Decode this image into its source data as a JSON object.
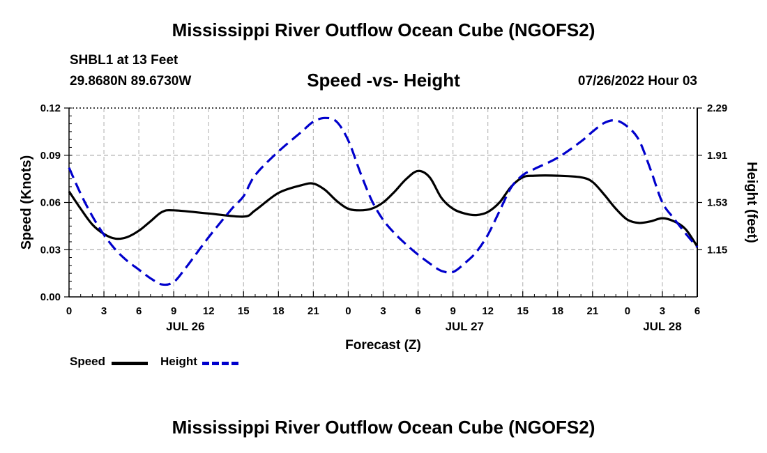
{
  "header": {
    "title": "Mississippi River Outflow Ocean Cube (NGOFS2)",
    "station": "SHBL1 at 13 Feet",
    "coordinates": "29.8680N  89.6730W",
    "subtitle": "Speed -vs- Height",
    "datetime": "07/26/2022 Hour 03"
  },
  "footer": {
    "title": "Mississippi River Outflow Ocean Cube (NGOFS2)"
  },
  "legend": {
    "speed_label": "Speed",
    "height_label": "Height",
    "speed_color": "#000000",
    "height_color": "#0000cc"
  },
  "chart_data": {
    "type": "line",
    "title": "Speed -vs- Height",
    "xlabel": "Forecast (Z)",
    "ylabel": "Speed (Knots)",
    "y2label": "Height (feet)",
    "x": [
      0,
      3,
      6,
      9,
      12,
      15,
      18,
      21,
      24,
      27,
      30,
      33,
      36,
      39,
      42,
      45,
      48,
      51,
      54
    ],
    "xticklabels": [
      "0",
      "3",
      "6",
      "9",
      "12",
      "15",
      "18",
      "21",
      "0",
      "3",
      "6",
      "9",
      "12",
      "15",
      "18",
      "21",
      "0",
      "3",
      "6"
    ],
    "date_labels": [
      {
        "hour": 10,
        "label": "JUL 26"
      },
      {
        "hour": 34,
        "label": "JUL 27"
      },
      {
        "hour": 51,
        "label": "JUL 28"
      }
    ],
    "ylim": [
      0,
      0.12
    ],
    "yticks": [
      0.0,
      0.03,
      0.06,
      0.09,
      0.12
    ],
    "yticklabels": [
      "0.00",
      "0.03",
      "0.06",
      "0.09",
      "0.12"
    ],
    "y2lim": [
      0.77,
      2.29
    ],
    "y2ticks": [
      1.15,
      1.53,
      1.91,
      2.29
    ],
    "y2ticklabels": [
      "1.15",
      "1.53",
      "1.91",
      "2.29"
    ],
    "grid": true,
    "series": [
      {
        "name": "Speed",
        "axis": "left",
        "style": "solid",
        "color": "#000000",
        "x": [
          0,
          1,
          2,
          3,
          4,
          5,
          6,
          7,
          8,
          9,
          12,
          15,
          16,
          18,
          20,
          21,
          22,
          23,
          24,
          25,
          26,
          27,
          28,
          29,
          30,
          31,
          32,
          33,
          34,
          35,
          36,
          37,
          38,
          39,
          40,
          42,
          44,
          45,
          46,
          47,
          48,
          49,
          50,
          51,
          52,
          53,
          54
        ],
        "values": [
          0.067,
          0.056,
          0.046,
          0.04,
          0.037,
          0.038,
          0.042,
          0.048,
          0.054,
          0.055,
          0.053,
          0.051,
          0.055,
          0.066,
          0.071,
          0.072,
          0.068,
          0.061,
          0.056,
          0.055,
          0.056,
          0.06,
          0.067,
          0.075,
          0.08,
          0.076,
          0.063,
          0.056,
          0.053,
          0.052,
          0.054,
          0.06,
          0.07,
          0.076,
          0.077,
          0.077,
          0.076,
          0.073,
          0.065,
          0.056,
          0.049,
          0.047,
          0.048,
          0.05,
          0.048,
          0.043,
          0.032
        ]
      },
      {
        "name": "Height",
        "axis": "right",
        "style": "dashed",
        "color": "#0000cc",
        "x": [
          0,
          1,
          2,
          3,
          4,
          5,
          6,
          7,
          8,
          9,
          10,
          12,
          14,
          15,
          16,
          18,
          20,
          21,
          22,
          23,
          24,
          25,
          26,
          27,
          28,
          29,
          30,
          31,
          32,
          33,
          34,
          35,
          36,
          37,
          38,
          39,
          40,
          42,
          44,
          45,
          46,
          47,
          48,
          49,
          50,
          51,
          52,
          53,
          54
        ],
        "values": [
          1.81,
          1.6,
          1.42,
          1.27,
          1.15,
          1.06,
          0.99,
          0.92,
          0.87,
          0.89,
          1.0,
          1.25,
          1.48,
          1.58,
          1.75,
          1.94,
          2.1,
          2.18,
          2.21,
          2.18,
          2.03,
          1.78,
          1.55,
          1.39,
          1.28,
          1.19,
          1.11,
          1.04,
          0.98,
          0.97,
          1.04,
          1.13,
          1.27,
          1.46,
          1.65,
          1.75,
          1.8,
          1.89,
          2.02,
          2.1,
          2.17,
          2.19,
          2.14,
          2.03,
          1.79,
          1.53,
          1.4,
          1.28,
          1.17
        ]
      }
    ]
  }
}
